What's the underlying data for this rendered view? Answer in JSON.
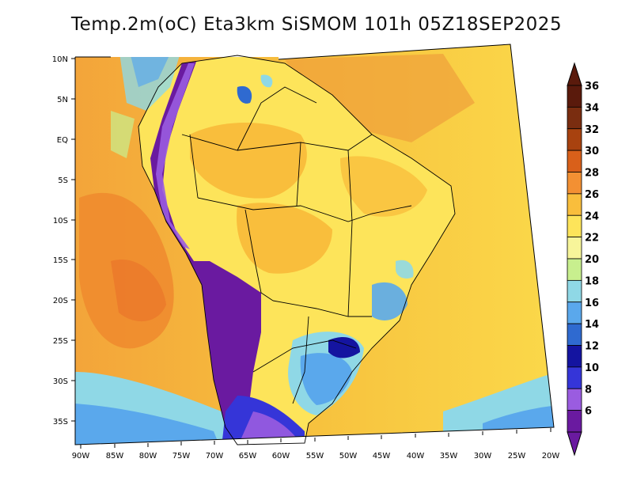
{
  "title": "Temp.2m(oC) Eta3km SiSMOM 101h 05Z18SEP2025",
  "map": {
    "lon_labels": [
      "90W",
      "85W",
      "80W",
      "75W",
      "70W",
      "65W",
      "60W",
      "55W",
      "50W",
      "45W",
      "40W",
      "35W",
      "30W",
      "25W",
      "20W"
    ],
    "lat_labels": [
      "10N",
      "5N",
      "EQ",
      "5S",
      "10S",
      "15S",
      "20S",
      "25S",
      "30S",
      "35S"
    ]
  },
  "colorbar": {
    "labels": [
      "36",
      "34",
      "32",
      "30",
      "28",
      "26",
      "24",
      "22",
      "20",
      "18",
      "16",
      "14",
      "12",
      "10",
      "8",
      "6"
    ],
    "colors": [
      "#5a1a0c",
      "#7a2d10",
      "#a8420f",
      "#d9601a",
      "#f39033",
      "#f9be3c",
      "#fde45a",
      "#f7f59a",
      "#c8ef8e",
      "#8fd8e6",
      "#5aa8ec",
      "#2f6ad0",
      "#1414a0",
      "#3535d8",
      "#9a5ce0",
      "#6a1aa0"
    ]
  }
}
